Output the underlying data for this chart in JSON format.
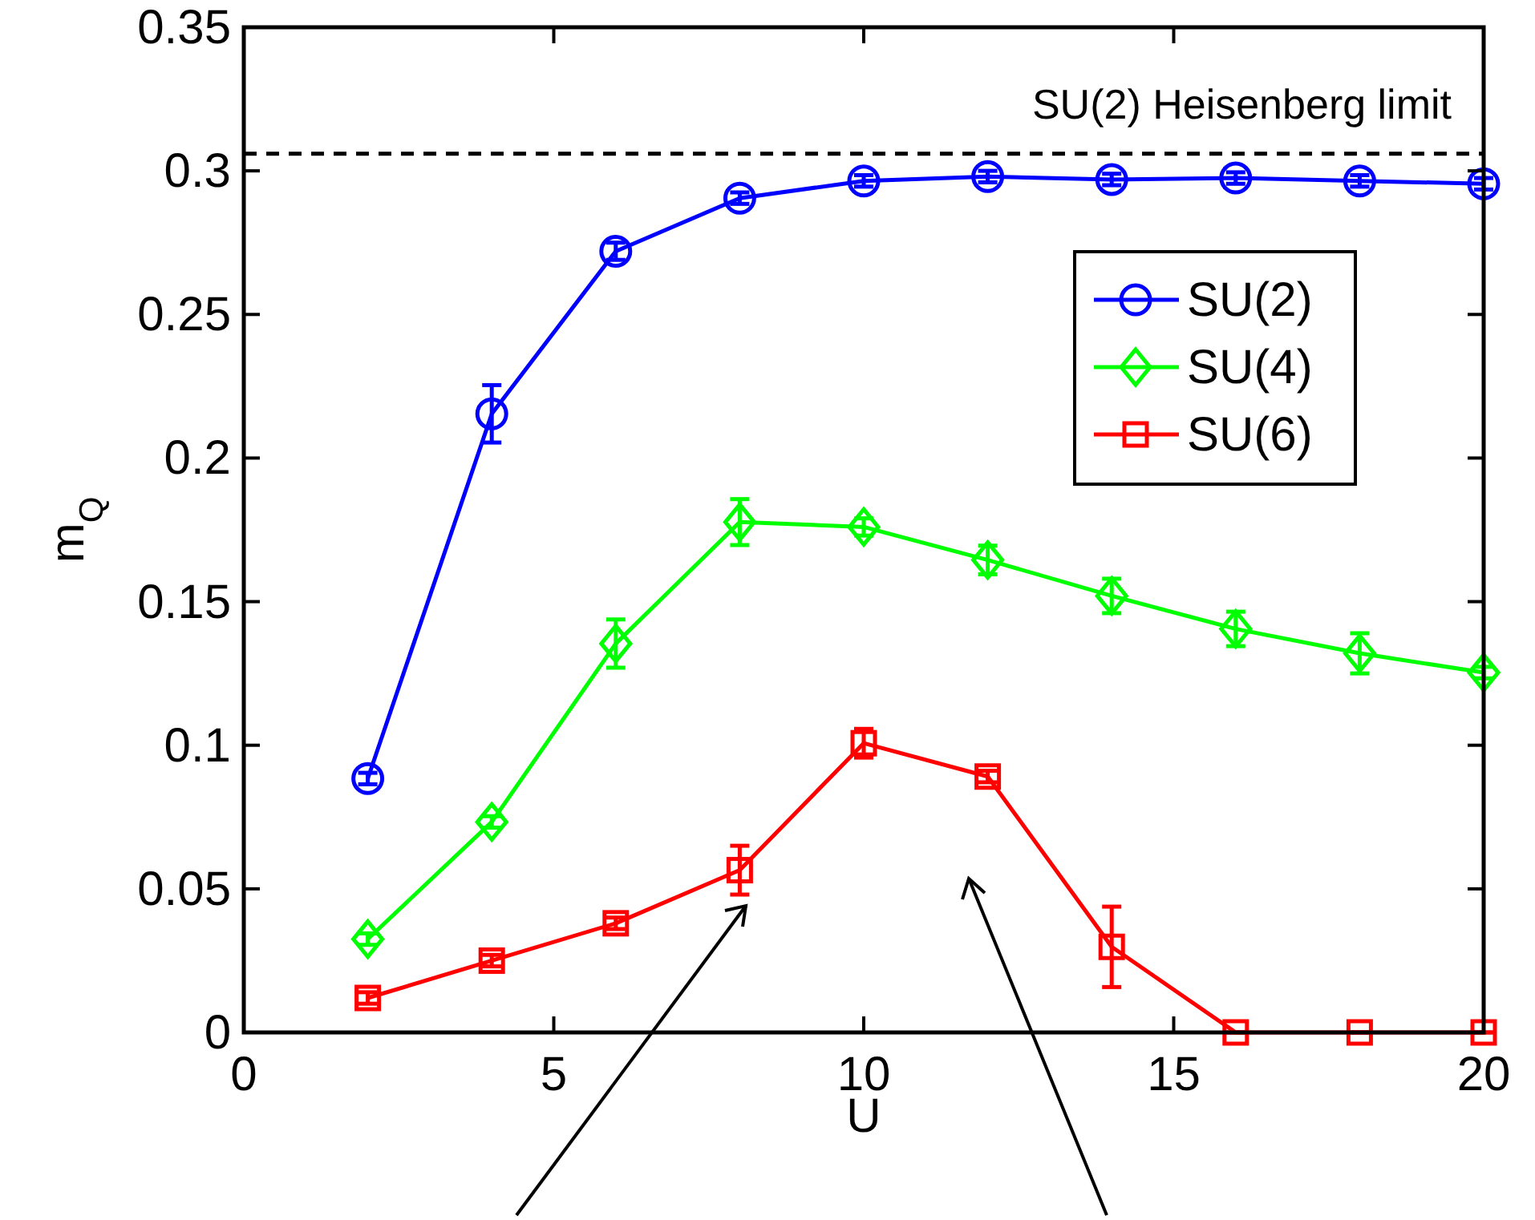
{
  "chart_data": {
    "type": "line",
    "xlabel": "U",
    "ylabel": "m$_{Q}$",
    "x": [
      2,
      4,
      6,
      8,
      10,
      12,
      14,
      16,
      18,
      20
    ],
    "xlim": [
      0,
      20
    ],
    "xticks": [
      0,
      5,
      10,
      15,
      20
    ],
    "ylim": [
      0,
      0.35
    ],
    "yticks": [
      0,
      0.05,
      0.1,
      0.15,
      0.2,
      0.25,
      0.3,
      0.35
    ],
    "grid": false,
    "legend": "top right",
    "line_style": "solid",
    "series": [
      {
        "name": "SU(2)",
        "color": "#0000ff",
        "marker": "circle",
        "values": [
          0.0884,
          0.2154,
          0.272,
          0.2905,
          0.2965,
          0.298,
          0.297,
          0.2975,
          0.2965,
          0.2955
        ],
        "errors": [
          0.002,
          0.01,
          0.003,
          0.002,
          0.002,
          0.002,
          0.002,
          0.002,
          0.002,
          0.002
        ]
      },
      {
        "name": "SU(4)",
        "color": "#00ff00",
        "marker": "diamond",
        "values": [
          0.0325,
          0.0733,
          0.1354,
          0.1777,
          0.176,
          0.1645,
          0.152,
          0.1405,
          0.132,
          0.1253
        ],
        "errors": [
          0.002,
          0.002,
          0.0084,
          0.008,
          0.003,
          0.005,
          0.006,
          0.006,
          0.007,
          0.002
        ]
      },
      {
        "name": "SU(6)",
        "color": "#ff0000",
        "marker": "square",
        "values": [
          0.012,
          0.025,
          0.038,
          0.0565,
          0.1007,
          0.0891,
          0.0298,
          0,
          0,
          0
        ],
        "errors": [
          0.002,
          0.002,
          0.002,
          0.0085,
          0.005,
          0.002,
          0.014,
          0,
          0,
          0
        ]
      }
    ],
    "ref_lines": [
      {
        "axis": "y",
        "value": 0.306,
        "label": "SU(2) Heisenberg limit",
        "color": "#000000",
        "line_style": "dashed"
      }
    ]
  }
}
